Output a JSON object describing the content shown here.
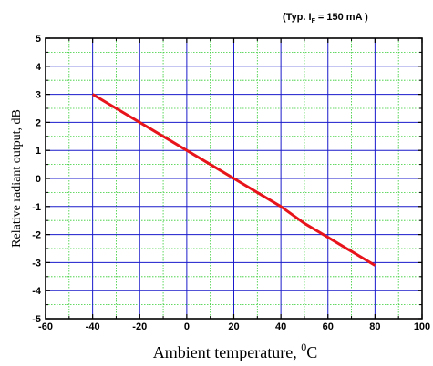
{
  "chart_data": {
    "type": "line",
    "annotation": {
      "prefix": "(Typ. I",
      "subscript": "F",
      "suffix": " = 150 mA )"
    },
    "xlabel": {
      "text": "Ambient temperature, ",
      "superscript": "0",
      "unit": "C"
    },
    "ylabel": "Relative radiant output, dB",
    "xlim": [
      -60,
      100
    ],
    "ylim": [
      -5,
      5
    ],
    "x_major_ticks": [
      -60,
      -40,
      -20,
      0,
      20,
      40,
      60,
      80,
      100
    ],
    "x_tick_labels": [
      "-60",
      "-40",
      "-20",
      "0",
      "20",
      "40",
      "60",
      "80",
      "100"
    ],
    "x_minor_ticks": [
      -50,
      -30,
      -10,
      10,
      30,
      50,
      70,
      90
    ],
    "y_major_ticks": [
      -5,
      -4,
      -3,
      -2,
      -1,
      0,
      1,
      2,
      3,
      4,
      5
    ],
    "y_tick_labels": [
      "-5",
      "-4",
      "-3",
      "-2",
      "-1",
      "0",
      "1",
      "2",
      "3",
      "4",
      "5"
    ],
    "y_minor_ticks": [
      -4.5,
      -3.5,
      -2.5,
      -1.5,
      -0.5,
      0.5,
      1.5,
      2.5,
      3.5,
      4.5
    ],
    "grid": true,
    "colors": {
      "line": "#e8141b",
      "major_grid": "#1a1acc",
      "minor_grid": "#33cc33",
      "frame": "#000000"
    },
    "series": [
      {
        "x": [
          -40,
          -30,
          -20,
          -10,
          0,
          10,
          20,
          30,
          40,
          50,
          60,
          70,
          80
        ],
        "y": [
          3.0,
          2.5,
          2.0,
          1.5,
          1.0,
          0.5,
          0.0,
          -0.5,
          -1.0,
          -1.6,
          -2.1,
          -2.6,
          -3.1
        ]
      }
    ]
  }
}
